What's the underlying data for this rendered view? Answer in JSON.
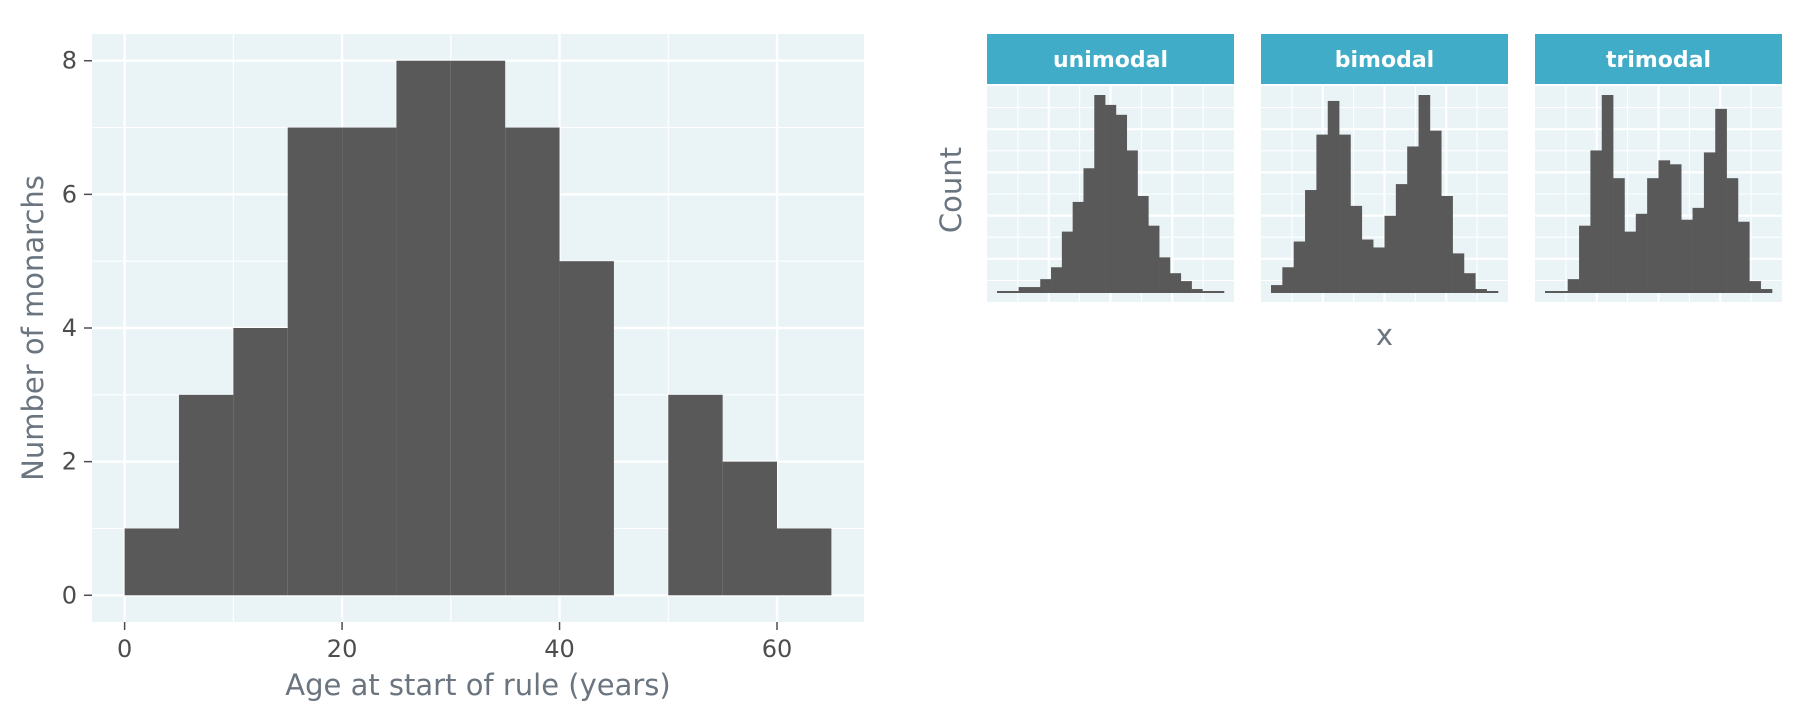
{
  "chart_data": [
    {
      "type": "bar",
      "kind": "histogram",
      "xlabel": "Age at start of rule (years)",
      "ylabel": "Number of monarchs",
      "bin_width": 5,
      "bins": [
        {
          "x0": 0,
          "x1": 5,
          "count": 1
        },
        {
          "x0": 5,
          "x1": 10,
          "count": 3
        },
        {
          "x0": 10,
          "x1": 15,
          "count": 4
        },
        {
          "x0": 15,
          "x1": 20,
          "count": 7
        },
        {
          "x0": 20,
          "x1": 25,
          "count": 7
        },
        {
          "x0": 25,
          "x1": 30,
          "count": 8
        },
        {
          "x0": 30,
          "x1": 35,
          "count": 8
        },
        {
          "x0": 35,
          "x1": 40,
          "count": 7
        },
        {
          "x0": 40,
          "x1": 45,
          "count": 5
        },
        {
          "x0": 45,
          "x1": 50,
          "count": 0
        },
        {
          "x0": 50,
          "x1": 55,
          "count": 3
        },
        {
          "x0": 55,
          "x1": 60,
          "count": 2
        },
        {
          "x0": 60,
          "x1": 65,
          "count": 1
        }
      ],
      "xlim": [
        -3,
        68
      ],
      "ylim": [
        -0.4,
        8.4
      ],
      "x_ticks": [
        0,
        20,
        40,
        60
      ],
      "y_ticks": [
        0,
        2,
        4,
        6,
        8
      ],
      "grid": true,
      "colors": {
        "bar": "#595959",
        "panel": "#eaf3f6",
        "grid": "#ffffff"
      }
    },
    {
      "type": "bar",
      "kind": "faceted-histogram",
      "xlabel": "x",
      "ylabel": "Count",
      "facets": [
        {
          "title": "unimodal",
          "counts": [
            0.01,
            0.01,
            0.03,
            0.03,
            0.07,
            0.13,
            0.31,
            0.46,
            0.63,
            1.0,
            0.95,
            0.9,
            0.72,
            0.49,
            0.34,
            0.18,
            0.1,
            0.06,
            0.02,
            0.01,
            0.01
          ]
        },
        {
          "title": "bimodal",
          "counts": [
            0.04,
            0.13,
            0.26,
            0.52,
            0.8,
            0.97,
            0.8,
            0.44,
            0.27,
            0.23,
            0.39,
            0.55,
            0.74,
            1.0,
            0.82,
            0.49,
            0.2,
            0.1,
            0.02,
            0.01
          ]
        },
        {
          "title": "trimodal",
          "counts": [
            0.01,
            0.01,
            0.07,
            0.34,
            0.72,
            1.0,
            0.58,
            0.31,
            0.4,
            0.58,
            0.67,
            0.65,
            0.37,
            0.43,
            0.71,
            0.93,
            0.58,
            0.36,
            0.06,
            0.02
          ]
        }
      ],
      "grid": true,
      "colors": {
        "bar": "#595959",
        "panel": "#eaf3f6",
        "grid": "#ffffff",
        "strip": "#40acc8",
        "strip_text": "#ffffff"
      }
    }
  ]
}
